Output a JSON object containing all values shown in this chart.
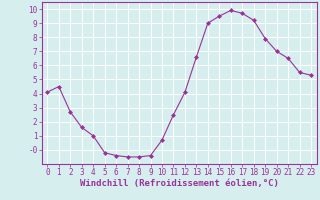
{
  "x": [
    0,
    1,
    2,
    3,
    4,
    5,
    6,
    7,
    8,
    9,
    10,
    11,
    12,
    13,
    14,
    15,
    16,
    17,
    18,
    19,
    20,
    21,
    22,
    23
  ],
  "y": [
    4.1,
    4.5,
    2.7,
    1.6,
    1.0,
    -0.2,
    -0.4,
    -0.5,
    -0.5,
    -0.4,
    0.7,
    2.5,
    4.1,
    6.6,
    9.0,
    9.5,
    9.9,
    9.7,
    9.2,
    7.9,
    7.0,
    6.5,
    5.5,
    5.3
  ],
  "line_color": "#993399",
  "marker": "D",
  "marker_size": 2,
  "xlabel": "Windchill (Refroidissement éolien,°C)",
  "xlabel_fontsize": 6.5,
  "xlim": [
    -0.5,
    23.5
  ],
  "ylim": [
    -1.0,
    10.5
  ],
  "yticks": [
    0,
    1,
    2,
    3,
    4,
    5,
    6,
    7,
    8,
    9,
    10
  ],
  "ytick_labels": [
    "-0",
    "1",
    "2",
    "3",
    "4",
    "5",
    "6",
    "7",
    "8",
    "9",
    "10"
  ],
  "xticks": [
    0,
    1,
    2,
    3,
    4,
    5,
    6,
    7,
    8,
    9,
    10,
    11,
    12,
    13,
    14,
    15,
    16,
    17,
    18,
    19,
    20,
    21,
    22,
    23
  ],
  "background_color": "#d6eeee",
  "grid_color": "#ffffff",
  "line_width": 0.8,
  "tick_color": "#993399",
  "tick_label_color": "#993399",
  "axis_label_color": "#993399",
  "border_color": "#993399",
  "tick_fontsize": 5.5,
  "xlabel_fontweight": "bold"
}
